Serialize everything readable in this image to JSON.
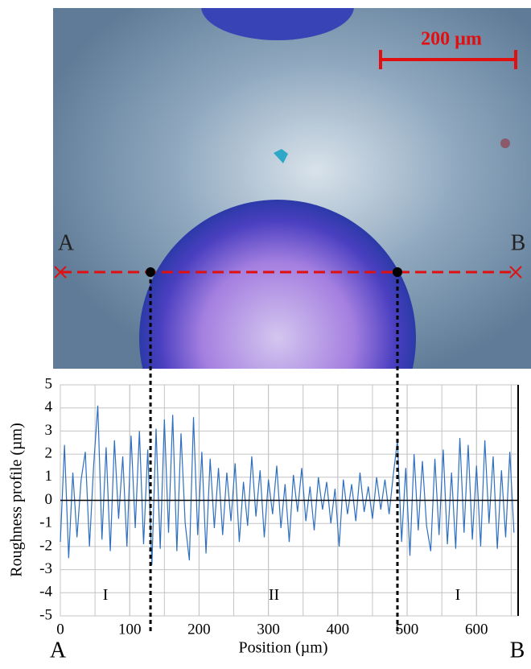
{
  "image": {
    "scale_bar": "200 µm",
    "line_start": "A",
    "line_end": "B"
  },
  "chart_data": {
    "type": "line",
    "y_label": "Roughness profile (µm)",
    "x_label": "Position (µm)",
    "xlim": [
      0,
      660
    ],
    "ylim": [
      -5,
      5
    ],
    "xticks": [
      0,
      100,
      200,
      300,
      400,
      500,
      600
    ],
    "x_minor_step": 50,
    "yticks": [
      -5,
      -4,
      -3,
      -2,
      -1,
      0,
      1,
      2,
      3,
      4,
      5
    ],
    "grid": true,
    "boundaries": [
      130,
      486
    ],
    "regions": [
      "I",
      "II",
      "I"
    ],
    "series": [
      {
        "color": "#2e6fc0",
        "x": [
          0,
          6,
          12,
          18,
          24,
          30,
          36,
          42,
          48,
          54,
          60,
          66,
          72,
          78,
          84,
          90,
          96,
          102,
          108,
          114,
          120,
          126,
          132,
          138,
          144,
          150,
          156,
          162,
          168,
          174,
          180,
          186,
          192,
          198,
          204,
          210,
          216,
          222,
          228,
          234,
          240,
          246,
          252,
          258,
          264,
          270,
          276,
          282,
          288,
          294,
          300,
          306,
          312,
          318,
          324,
          330,
          336,
          342,
          348,
          354,
          360,
          366,
          372,
          378,
          384,
          390,
          396,
          402,
          408,
          414,
          420,
          426,
          432,
          438,
          444,
          450,
          456,
          462,
          468,
          474,
          480,
          486,
          492,
          498,
          504,
          510,
          516,
          522,
          528,
          534,
          540,
          546,
          552,
          558,
          564,
          570,
          576,
          582,
          588,
          594,
          600,
          606,
          612,
          618,
          624,
          630,
          636,
          642,
          648,
          654
        ],
        "values": [
          -1.8,
          2.4,
          -2.5,
          1.2,
          -1.6,
          0.9,
          2.1,
          -2.0,
          1.5,
          4.1,
          -1.7,
          2.3,
          -2.2,
          2.6,
          -0.8,
          1.9,
          -2.0,
          2.8,
          -1.2,
          3.0,
          -1.9,
          2.2,
          -2.8,
          3.1,
          -2.1,
          3.5,
          -1.4,
          3.7,
          -2.2,
          2.9,
          -1.0,
          -2.6,
          3.6,
          -1.5,
          2.1,
          -2.3,
          1.8,
          -1.2,
          1.4,
          -1.5,
          1.2,
          -0.9,
          1.6,
          -1.8,
          0.8,
          -1.1,
          1.9,
          -0.7,
          1.3,
          -1.6,
          0.9,
          -0.6,
          1.5,
          -1.2,
          0.7,
          -1.8,
          1.1,
          -0.5,
          1.4,
          -0.9,
          0.6,
          -1.3,
          1.0,
          -0.4,
          0.8,
          -1.0,
          0.5,
          -2.0,
          0.9,
          -0.6,
          0.7,
          -0.9,
          1.2,
          -0.5,
          0.6,
          -0.8,
          1.0,
          -0.4,
          0.9,
          -0.6,
          1.1,
          2.6,
          -1.8,
          1.4,
          -2.4,
          2.0,
          -1.3,
          1.7,
          -1.1,
          -2.2,
          1.8,
          -1.5,
          2.2,
          -1.9,
          1.2,
          -2.1,
          2.7,
          -1.4,
          2.4,
          -1.7,
          1.5,
          -2.0,
          2.6,
          -1.0,
          1.9,
          -2.1,
          1.3,
          -1.6,
          2.1,
          -1.4
        ]
      }
    ]
  }
}
